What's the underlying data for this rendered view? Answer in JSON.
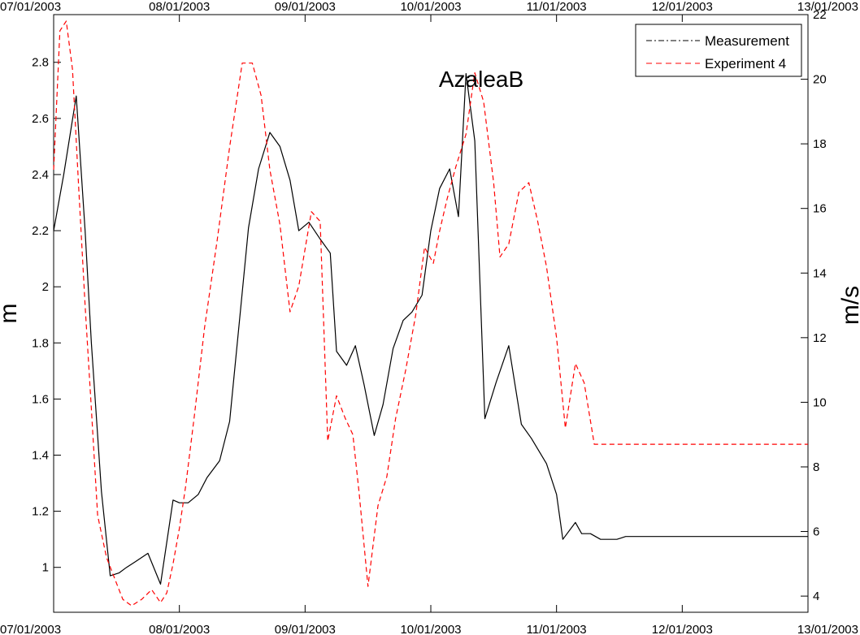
{
  "chart_data": {
    "type": "line",
    "title": "AzaleaB",
    "ylabel_left": "m",
    "ylabel_right": "m/s",
    "x_tick_labels": [
      "07/01/2003",
      "08/01/2003",
      "09/01/2003",
      "10/01/2003",
      "11/01/2003",
      "12/01/2003",
      "13/01/2003"
    ],
    "x_tick_positions_days": [
      0,
      1,
      2,
      3,
      4,
      5,
      6
    ],
    "xlim_days": [
      0,
      6
    ],
    "ylim_left": [
      0.84,
      2.97
    ],
    "ylim_right": [
      3.5,
      22
    ],
    "y_ticks_left": [
      1,
      1.2,
      1.4,
      1.6,
      1.8,
      2,
      2.2,
      2.4,
      2.6,
      2.8
    ],
    "y_tick_labels_left": [
      "1",
      "1.2",
      "1.4",
      "1.6",
      "1.8",
      "2",
      "2.2",
      "2.4",
      "2.6",
      "2.8"
    ],
    "y_ticks_right": [
      4,
      6,
      8,
      10,
      12,
      14,
      16,
      18,
      20,
      22
    ],
    "y_tick_labels_right": [
      "4",
      "6",
      "8",
      "10",
      "12",
      "14",
      "16",
      "18",
      "20",
      "22"
    ],
    "legend_position": "top-right",
    "series": [
      {
        "name": "Measurement",
        "axis": "left",
        "color": "#000000",
        "style": "solid",
        "x": [
          0.0,
          0.08,
          0.18,
          0.25,
          0.3,
          0.38,
          0.45,
          0.52,
          0.58,
          0.65,
          0.75,
          0.85,
          0.95,
          1.0,
          1.07,
          1.15,
          1.22,
          1.32,
          1.4,
          1.5,
          1.55,
          1.63,
          1.72,
          1.8,
          1.88,
          1.95,
          2.03,
          2.12,
          2.2,
          2.25,
          2.33,
          2.4,
          2.47,
          2.55,
          2.62,
          2.7,
          2.78,
          2.85,
          2.93,
          3.0,
          3.07,
          3.15,
          3.22,
          3.28,
          3.35,
          3.43,
          3.52,
          3.62,
          3.72,
          3.8,
          3.92,
          4.0,
          4.05,
          4.15,
          4.2,
          4.27,
          4.35,
          4.43,
          4.48,
          4.55,
          4.65,
          4.73,
          4.8,
          4.88,
          4.95,
          5.02,
          5.08,
          5.15,
          5.23,
          5.3,
          5.38,
          5.45,
          5.52,
          5.58,
          5.63,
          5.7,
          5.75,
          5.82,
          5.88,
          5.93,
          6.0
        ],
        "y": [
          2.2,
          2.4,
          2.68,
          2.2,
          1.8,
          1.27,
          0.97,
          0.98,
          1.0,
          1.02,
          1.05,
          0.94,
          1.24,
          1.23,
          1.23,
          1.26,
          1.32,
          1.38,
          1.52,
          1.98,
          2.21,
          2.42,
          2.55,
          2.5,
          2.38,
          2.2,
          2.23,
          2.17,
          2.12,
          1.77,
          1.72,
          1.79,
          1.65,
          1.47,
          1.58,
          1.78,
          1.88,
          1.91,
          1.97,
          2.2,
          2.35,
          2.42,
          2.25,
          2.76,
          2.52,
          1.53,
          1.66,
          1.79,
          1.51,
          1.46,
          1.37,
          1.26,
          1.1,
          1.16,
          1.12,
          1.12,
          1.1,
          1.1,
          1.1,
          1.11,
          1.11,
          1.11,
          1.11,
          1.11,
          1.11,
          1.11,
          1.11,
          1.11,
          1.11,
          1.11,
          1.11,
          1.11,
          1.11,
          1.11,
          1.11,
          1.11,
          1.11,
          1.11,
          1.11,
          1.11,
          1.11
        ]
      },
      {
        "name": "Experiment 4",
        "axis": "right",
        "color": "#ff0000",
        "style": "dashed",
        "x": [
          0.0,
          0.05,
          0.1,
          0.15,
          0.2,
          0.25,
          0.3,
          0.35,
          0.42,
          0.5,
          0.55,
          0.62,
          0.7,
          0.78,
          0.85,
          0.9,
          0.95,
          1.0,
          1.05,
          1.12,
          1.2,
          1.3,
          1.4,
          1.5,
          1.58,
          1.65,
          1.72,
          1.8,
          1.88,
          1.95,
          2.05,
          2.12,
          2.18,
          2.25,
          2.32,
          2.38,
          2.43,
          2.5,
          2.58,
          2.65,
          2.72,
          2.8,
          2.88,
          2.95,
          3.02,
          3.07,
          3.13,
          3.2,
          3.28,
          3.35,
          3.42,
          3.5,
          3.55,
          3.62,
          3.7,
          3.78,
          3.85,
          3.92,
          4.0,
          4.07,
          4.15,
          4.22,
          4.3,
          4.38,
          4.45,
          4.52,
          4.58,
          4.65,
          4.72,
          4.8,
          4.88,
          4.95,
          5.0,
          5.05,
          5.12,
          5.2,
          5.3,
          5.38,
          5.45,
          5.52,
          5.6,
          5.67,
          5.75,
          5.82,
          5.88,
          5.95,
          6.0
        ],
        "y": [
          17.2,
          21.5,
          21.8,
          20.3,
          16.6,
          13.0,
          9.8,
          6.5,
          5.2,
          4.4,
          3.9,
          3.7,
          3.9,
          4.2,
          3.8,
          4.1,
          5.0,
          6.1,
          7.4,
          9.6,
          12.3,
          15.0,
          17.9,
          20.5,
          20.5,
          19.5,
          17.2,
          15.5,
          12.8,
          13.6,
          15.9,
          15.6,
          8.8,
          10.2,
          9.5,
          9.0,
          7.2,
          4.3,
          6.8,
          7.7,
          9.5,
          11.0,
          12.7,
          14.8,
          14.3,
          15.3,
          16.3,
          17.3,
          18.3,
          20.2,
          19.3,
          16.8,
          14.5,
          14.9,
          16.5,
          16.8,
          15.6,
          14.2,
          12.0,
          9.2,
          11.2,
          10.6,
          8.7,
          8.7,
          8.7,
          8.7,
          8.7,
          8.7,
          8.7,
          8.7,
          8.7,
          8.7,
          8.7,
          8.7,
          8.7,
          8.7,
          8.7,
          8.7,
          8.7,
          8.7,
          8.7,
          8.7,
          8.7,
          8.7,
          8.7,
          8.7,
          8.7
        ]
      }
    ]
  }
}
